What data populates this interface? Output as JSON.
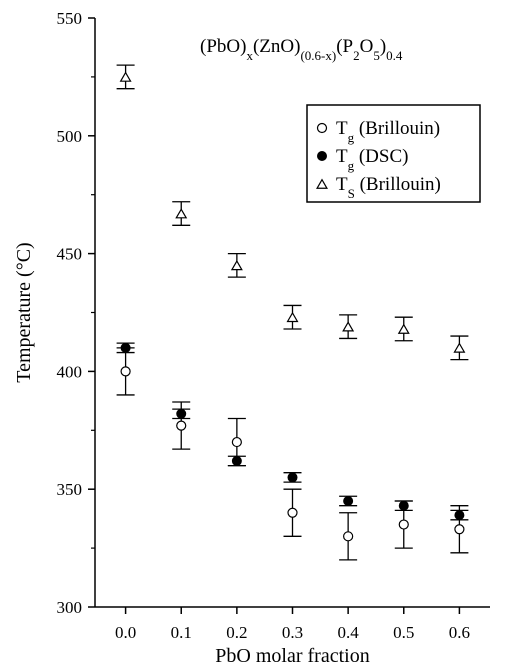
{
  "chart_data": {
    "type": "scatter",
    "title": {
      "main": "(PbO)x(ZnO)(0.6-x)(P2O5)0.4",
      "parts": [
        {
          "t": "(PbO)",
          "s": "n"
        },
        {
          "t": "x",
          "s": "sub"
        },
        {
          "t": "(ZnO)",
          "s": "n"
        },
        {
          "t": "(0.6-x)",
          "s": "sub"
        },
        {
          "t": "(P",
          "s": "n"
        },
        {
          "t": "2",
          "s": "sub"
        },
        {
          "t": "O",
          "s": "n"
        },
        {
          "t": "5",
          "s": "sub"
        },
        {
          "t": ")",
          "s": "n"
        },
        {
          "t": "0.4",
          "s": "sub"
        }
      ]
    },
    "xlabel": "PbO molar fraction",
    "ylabel": "Temperature (°C)",
    "xlim": [
      -0.055,
      0.655
    ],
    "ylim": [
      300,
      550
    ],
    "xticks": [
      "0.0",
      "0.1",
      "0.2",
      "0.3",
      "0.4",
      "0.5",
      "0.6"
    ],
    "yticks": [
      "300",
      "350",
      "400",
      "450",
      "500",
      "550"
    ],
    "legend_position": "top-right",
    "series": [
      {
        "name": "Tg (Brillouin)",
        "label_parts": [
          {
            "t": "T",
            "s": "n"
          },
          {
            "t": "g",
            "s": "sub"
          },
          {
            "t": " (Brillouin)",
            "s": "n"
          }
        ],
        "marker": "open-circle",
        "x": [
          0.0,
          0.1,
          0.2,
          0.3,
          0.4,
          0.5,
          0.6
        ],
        "y": [
          400,
          377,
          370,
          340,
          330,
          335,
          333
        ],
        "err": [
          10,
          10,
          10,
          10,
          10,
          10,
          10
        ]
      },
      {
        "name": "Tg (DSC)",
        "label_parts": [
          {
            "t": "T",
            "s": "n"
          },
          {
            "t": "g",
            "s": "sub"
          },
          {
            "t": " (DSC)",
            "s": "n"
          }
        ],
        "marker": "filled-circle",
        "x": [
          0.0,
          0.1,
          0.2,
          0.3,
          0.4,
          0.5,
          0.6
        ],
        "y": [
          410,
          382,
          362,
          355,
          345,
          343,
          339
        ],
        "err": [
          2,
          2,
          2,
          2,
          2,
          2,
          2
        ]
      },
      {
        "name": "TS (Brillouin)",
        "label_parts": [
          {
            "t": "T",
            "s": "n"
          },
          {
            "t": "S",
            "s": "sub"
          },
          {
            "t": " (Brillouin)",
            "s": "n"
          }
        ],
        "marker": "open-triangle",
        "x": [
          0.0,
          0.1,
          0.2,
          0.3,
          0.4,
          0.5,
          0.6
        ],
        "y": [
          525,
          467,
          445,
          423,
          419,
          418,
          410
        ],
        "err": [
          5,
          5,
          5,
          5,
          5,
          5,
          5
        ]
      }
    ]
  }
}
